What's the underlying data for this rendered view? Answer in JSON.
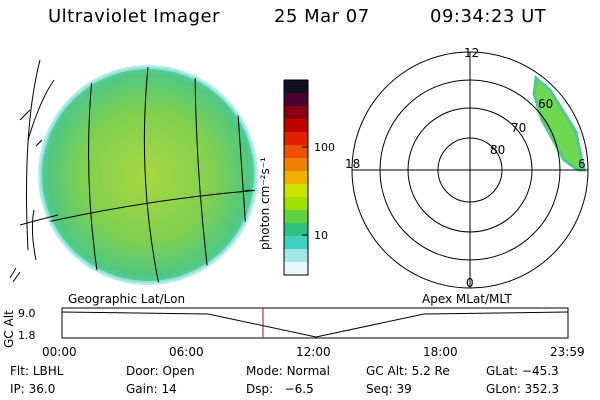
{
  "header": {
    "instrument": "Ultraviolet Imager",
    "date": "25 Mar 07",
    "time": "09:34:23 UT"
  },
  "colorbar": {
    "unit_label": "photon cm⁻²s⁻¹",
    "ticks": [
      "100",
      "10"
    ],
    "colors": [
      "#101020",
      "#4a0030",
      "#8a0010",
      "#c00000",
      "#e02000",
      "#f05000",
      "#f08000",
      "#f0b000",
      "#d0e000",
      "#a0e000",
      "#60d040",
      "#30c080",
      "#40d0c0",
      "#a0e8e8",
      "#e8f8f8"
    ]
  },
  "polar_plot": {
    "mlt_labels": [
      "12",
      "18",
      "6",
      "0"
    ],
    "lat_labels": [
      "60",
      "70",
      "80"
    ]
  },
  "timeline": {
    "y_axis_label": "GC Alt",
    "y_ticks": [
      "9.0",
      "1.8"
    ],
    "left_caption": "Geographic Lat/Lon",
    "right_caption": "Apex MLat/MLT",
    "x_ticks": [
      "00:00",
      "06:00",
      "12:00",
      "18:00",
      "23:59"
    ]
  },
  "info_rows": [
    [
      {
        "label": "Flt:",
        "value": "LBHL"
      },
      {
        "label": "Door:",
        "value": "Open"
      },
      {
        "label": "Mode:",
        "value": "Normal"
      },
      {
        "label": "GC Alt:",
        "value": "5.2 Re"
      },
      {
        "label": "GLat:",
        "value": "−45.3"
      }
    ],
    [
      {
        "label": "IP:",
        "value": "36.0"
      },
      {
        "label": "Gain:",
        "value": "14"
      },
      {
        "label": "Dsp:",
        "value": "  −6.5"
      },
      {
        "label": "Seq:",
        "value": "39"
      },
      {
        "label": "GLon:",
        "value": "352.3"
      }
    ]
  ]
}
